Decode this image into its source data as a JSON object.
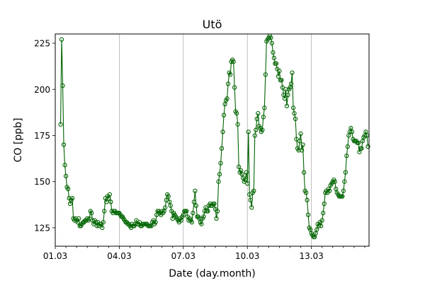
{
  "chart_data": {
    "type": "line",
    "title": "Utö",
    "xlabel": "Date (day.month)",
    "ylabel": "CO [ppb]",
    "x_units": "days since 01.03 00:00",
    "xlim": [
      0,
      14.7
    ],
    "ylim": [
      115,
      230
    ],
    "x_ticks": [
      {
        "value": 0,
        "label": "01.03"
      },
      {
        "value": 3,
        "label": "04.03"
      },
      {
        "value": 6,
        "label": "07.03"
      },
      {
        "value": 9,
        "label": "10.03"
      },
      {
        "value": 12,
        "label": "13.03"
      }
    ],
    "minor_x_ticks": [
      0.5,
      1,
      1.5,
      2,
      2.5,
      3.5,
      4,
      4.5,
      5,
      5.5,
      6.5,
      7,
      7.5,
      8,
      8.5,
      9.5,
      10,
      10.5,
      11,
      11.5,
      12.5,
      13,
      13.5,
      14,
      14.5
    ],
    "y_ticks": [
      {
        "value": 125,
        "label": "125"
      },
      {
        "value": 150,
        "label": "150"
      },
      {
        "value": 175,
        "label": "175"
      },
      {
        "value": 200,
        "label": "200"
      },
      {
        "value": 225,
        "label": "225"
      }
    ],
    "grid": {
      "vertical_at": [
        3,
        6,
        9,
        12
      ]
    },
    "colors": {
      "series": "#006400"
    },
    "marker": "hollow-circle",
    "series": [
      {
        "points": [
          [
            0.25,
            181
          ],
          [
            0.3,
            227
          ],
          [
            0.35,
            202
          ],
          [
            0.4,
            170
          ],
          [
            0.45,
            159
          ],
          [
            0.5,
            153
          ],
          [
            0.55,
            147
          ],
          [
            0.6,
            146
          ],
          [
            0.65,
            141
          ],
          [
            0.7,
            138
          ],
          [
            0.75,
            140
          ],
          [
            0.8,
            141
          ],
          [
            0.85,
            130
          ],
          [
            0.9,
            129
          ],
          [
            0.95,
            130
          ],
          [
            1.0,
            129
          ],
          [
            1.05,
            128
          ],
          [
            1.1,
            130
          ],
          [
            1.15,
            126
          ],
          [
            1.2,
            126
          ],
          [
            1.25,
            127
          ],
          [
            1.3,
            128
          ],
          [
            1.35,
            128
          ],
          [
            1.4,
            129
          ],
          [
            1.45,
            129
          ],
          [
            1.5,
            130
          ],
          [
            1.55,
            129
          ],
          [
            1.6,
            130
          ],
          [
            1.65,
            134
          ],
          [
            1.7,
            133
          ],
          [
            1.75,
            129
          ],
          [
            1.8,
            127
          ],
          [
            1.85,
            129
          ],
          [
            1.9,
            128
          ],
          [
            1.95,
            126
          ],
          [
            2.0,
            128
          ],
          [
            2.05,
            126
          ],
          [
            2.1,
            127
          ],
          [
            2.15,
            127
          ],
          [
            2.2,
            125
          ],
          [
            2.25,
            128
          ],
          [
            2.3,
            134
          ],
          [
            2.35,
            141
          ],
          [
            2.4,
            139
          ],
          [
            2.45,
            142
          ],
          [
            2.5,
            141
          ],
          [
            2.55,
            143
          ],
          [
            2.6,
            139
          ],
          [
            2.65,
            134
          ],
          [
            2.7,
            133
          ],
          [
            2.75,
            134
          ],
          [
            2.8,
            134
          ],
          [
            2.85,
            133
          ],
          [
            2.9,
            133
          ],
          [
            2.95,
            133
          ],
          [
            3.0,
            133
          ],
          [
            3.05,
            132
          ],
          [
            3.1,
            131
          ],
          [
            3.15,
            131
          ],
          [
            3.2,
            130
          ],
          [
            3.25,
            129
          ],
          [
            3.3,
            128
          ],
          [
            3.35,
            128
          ],
          [
            3.4,
            127
          ],
          [
            3.45,
            127
          ],
          [
            3.5,
            126
          ],
          [
            3.55,
            125
          ],
          [
            3.6,
            127
          ],
          [
            3.65,
            126
          ],
          [
            3.7,
            126
          ],
          [
            3.75,
            127
          ],
          [
            3.8,
            129
          ],
          [
            3.85,
            127
          ],
          [
            3.9,
            127
          ],
          [
            3.95,
            128
          ],
          [
            4.0,
            126
          ],
          [
            4.05,
            126
          ],
          [
            4.1,
            127
          ],
          [
            4.15,
            127
          ],
          [
            4.2,
            127
          ],
          [
            4.25,
            127
          ],
          [
            4.3,
            127
          ],
          [
            4.35,
            126
          ],
          [
            4.4,
            126
          ],
          [
            4.45,
            126
          ],
          [
            4.5,
            126
          ],
          [
            4.55,
            128
          ],
          [
            4.6,
            129
          ],
          [
            4.65,
            127
          ],
          [
            4.7,
            128
          ],
          [
            4.75,
            132
          ],
          [
            4.8,
            134
          ],
          [
            4.85,
            134
          ],
          [
            4.9,
            133
          ],
          [
            4.95,
            132
          ],
          [
            5.0,
            134
          ],
          [
            5.05,
            133
          ],
          [
            5.1,
            134
          ],
          [
            5.15,
            136
          ],
          [
            5.2,
            140
          ],
          [
            5.25,
            143
          ],
          [
            5.3,
            142
          ],
          [
            5.35,
            139
          ],
          [
            5.4,
            137
          ],
          [
            5.45,
            134
          ],
          [
            5.5,
            130
          ],
          [
            5.55,
            133
          ],
          [
            5.6,
            132
          ],
          [
            5.65,
            131
          ],
          [
            5.7,
            130
          ],
          [
            5.75,
            129
          ],
          [
            5.8,
            128
          ],
          [
            5.85,
            130
          ],
          [
            5.9,
            129
          ],
          [
            5.95,
            131
          ],
          [
            6.0,
            132
          ],
          [
            6.05,
            134
          ],
          [
            6.1,
            134
          ],
          [
            6.15,
            134
          ],
          [
            6.2,
            131
          ],
          [
            6.25,
            129
          ],
          [
            6.3,
            130
          ],
          [
            6.35,
            129
          ],
          [
            6.4,
            128
          ],
          [
            6.45,
            133
          ],
          [
            6.5,
            139
          ],
          [
            6.55,
            145
          ],
          [
            6.6,
            137
          ],
          [
            6.65,
            131
          ],
          [
            6.7,
            131
          ],
          [
            6.75,
            130
          ],
          [
            6.8,
            128
          ],
          [
            6.85,
            127
          ],
          [
            6.9,
            130
          ],
          [
            6.95,
            131
          ],
          [
            7.0,
            134
          ],
          [
            7.05,
            136
          ],
          [
            7.1,
            134
          ],
          [
            7.15,
            134
          ],
          [
            7.2,
            137
          ],
          [
            7.25,
            138
          ],
          [
            7.3,
            137
          ],
          [
            7.35,
            137
          ],
          [
            7.4,
            138
          ],
          [
            7.45,
            138
          ],
          [
            7.5,
            135
          ],
          [
            7.55,
            130
          ],
          [
            7.6,
            134
          ],
          [
            7.65,
            150
          ],
          [
            7.7,
            154
          ],
          [
            7.75,
            160
          ],
          [
            7.8,
            168
          ],
          [
            7.85,
            177
          ],
          [
            7.9,
            186
          ],
          [
            7.95,
            192
          ],
          [
            8.0,
            194
          ],
          [
            8.05,
            195
          ],
          [
            8.1,
            203
          ],
          [
            8.15,
            209
          ],
          [
            8.2,
            208
          ],
          [
            8.25,
            215
          ],
          [
            8.3,
            216
          ],
          [
            8.35,
            215
          ],
          [
            8.4,
            201
          ],
          [
            8.45,
            188
          ],
          [
            8.5,
            187
          ],
          [
            8.55,
            181
          ],
          [
            8.6,
            158
          ],
          [
            8.65,
            155
          ],
          [
            8.7,
            156
          ],
          [
            8.75,
            154
          ],
          [
            8.8,
            152
          ],
          [
            8.85,
            150
          ],
          [
            8.9,
            151
          ],
          [
            8.95,
            155
          ],
          [
            9.0,
            149
          ],
          [
            9.05,
            177
          ],
          [
            9.1,
            143
          ],
          [
            9.15,
            140
          ],
          [
            9.2,
            136
          ],
          [
            9.25,
            144
          ],
          [
            9.3,
            145
          ],
          [
            9.35,
            175
          ],
          [
            9.4,
            178
          ],
          [
            9.45,
            184
          ],
          [
            9.5,
            187
          ],
          [
            9.55,
            180
          ],
          [
            9.6,
            179
          ],
          [
            9.65,
            177
          ],
          [
            9.7,
            178
          ],
          [
            9.75,
            185
          ],
          [
            9.8,
            190
          ],
          [
            9.85,
            208
          ],
          [
            9.9,
            226
          ],
          [
            9.95,
            227
          ],
          [
            10.0,
            228
          ],
          [
            10.05,
            229
          ],
          [
            10.1,
            228
          ],
          [
            10.15,
            225
          ],
          [
            10.2,
            220
          ],
          [
            10.25,
            217
          ],
          [
            10.3,
            214
          ],
          [
            10.35,
            214
          ],
          [
            10.4,
            211
          ],
          [
            10.45,
            207
          ],
          [
            10.5,
            210
          ],
          [
            10.55,
            205
          ],
          [
            10.6,
            205
          ],
          [
            10.65,
            201
          ],
          [
            10.7,
            197
          ],
          [
            10.75,
            195
          ],
          [
            10.8,
            200
          ],
          [
            10.85,
            191
          ],
          [
            10.9,
            197
          ],
          [
            10.95,
            200
          ],
          [
            11.0,
            201
          ],
          [
            11.05,
            203
          ],
          [
            11.1,
            209
          ],
          [
            11.15,
            190
          ],
          [
            11.2,
            187
          ],
          [
            11.25,
            184
          ],
          [
            11.3,
            173
          ],
          [
            11.35,
            168
          ],
          [
            11.4,
            167
          ],
          [
            11.45,
            172
          ],
          [
            11.5,
            176
          ],
          [
            11.55,
            167
          ],
          [
            11.6,
            170
          ],
          [
            11.65,
            155
          ],
          [
            11.7,
            145
          ],
          [
            11.75,
            144
          ],
          [
            11.8,
            140
          ],
          [
            11.85,
            132
          ],
          [
            11.9,
            125
          ],
          [
            11.95,
            124
          ],
          [
            12.0,
            122
          ],
          [
            12.05,
            121
          ],
          [
            12.1,
            120
          ],
          [
            12.15,
            120
          ],
          [
            12.2,
            122
          ],
          [
            12.25,
            124
          ],
          [
            12.3,
            127
          ],
          [
            12.35,
            126
          ],
          [
            12.4,
            128
          ],
          [
            12.45,
            126
          ],
          [
            12.5,
            129
          ],
          [
            12.55,
            133
          ],
          [
            12.6,
            138
          ],
          [
            12.65,
            144
          ],
          [
            12.7,
            145
          ],
          [
            12.75,
            144
          ],
          [
            12.8,
            146
          ],
          [
            12.85,
            145
          ],
          [
            12.9,
            148
          ],
          [
            12.95,
            149
          ],
          [
            13.0,
            150
          ],
          [
            13.05,
            151
          ],
          [
            13.1,
            150
          ],
          [
            13.15,
            146
          ],
          [
            13.2,
            144
          ],
          [
            13.25,
            143
          ],
          [
            13.3,
            142
          ],
          [
            13.35,
            142
          ],
          [
            13.4,
            142
          ],
          [
            13.45,
            142
          ],
          [
            13.5,
            145
          ],
          [
            13.55,
            150
          ],
          [
            13.6,
            155
          ],
          [
            13.65,
            164
          ],
          [
            13.7,
            169
          ],
          [
            13.75,
            175
          ],
          [
            13.8,
            177
          ],
          [
            13.85,
            179
          ],
          [
            13.9,
            177
          ],
          [
            13.95,
            173
          ],
          [
            14.0,
            172
          ],
          [
            14.05,
            172
          ],
          [
            14.1,
            172
          ],
          [
            14.15,
            171
          ],
          [
            14.2,
            171
          ],
          [
            14.25,
            166
          ],
          [
            14.3,
            168
          ],
          [
            14.35,
            168
          ],
          [
            14.4,
            172
          ],
          [
            14.45,
            174
          ],
          [
            14.5,
            175
          ],
          [
            14.55,
            177
          ],
          [
            14.6,
            175
          ],
          [
            14.65,
            169
          ]
        ]
      }
    ]
  }
}
